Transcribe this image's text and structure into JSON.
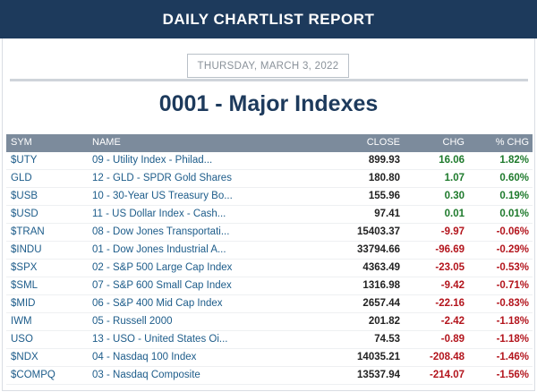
{
  "header": {
    "title": "DAILY CHARTLIST REPORT"
  },
  "report": {
    "date": "THURSDAY, MARCH 3, 2022",
    "list_title": "0001 - Major Indexes"
  },
  "table": {
    "columns": {
      "sym": "SYM",
      "name": "NAME",
      "close": "CLOSE",
      "chg": "CHG",
      "pct": "% CHG"
    },
    "rows": [
      {
        "sym": "$UTY",
        "name": "09 - Utility Index - Philad...",
        "close": "899.93",
        "chg": "16.06",
        "pct": "1.82%",
        "dir": "pos"
      },
      {
        "sym": "GLD",
        "name": "12 - GLD - SPDR Gold Shares",
        "close": "180.80",
        "chg": "1.07",
        "pct": "0.60%",
        "dir": "pos"
      },
      {
        "sym": "$USB",
        "name": "10 - 30-Year US Treasury Bo...",
        "close": "155.96",
        "chg": "0.30",
        "pct": "0.19%",
        "dir": "pos"
      },
      {
        "sym": "$USD",
        "name": "11 - US Dollar Index - Cash...",
        "close": "97.41",
        "chg": "0.01",
        "pct": "0.01%",
        "dir": "pos"
      },
      {
        "sym": "$TRAN",
        "name": "08 - Dow Jones Transportati...",
        "close": "15403.37",
        "chg": "-9.97",
        "pct": "-0.06%",
        "dir": "neg"
      },
      {
        "sym": "$INDU",
        "name": "01 - Dow Jones Industrial A...",
        "close": "33794.66",
        "chg": "-96.69",
        "pct": "-0.29%",
        "dir": "neg"
      },
      {
        "sym": "$SPX",
        "name": "02 - S&P 500 Large Cap Index",
        "close": "4363.49",
        "chg": "-23.05",
        "pct": "-0.53%",
        "dir": "neg"
      },
      {
        "sym": "$SML",
        "name": "07 - S&P 600 Small Cap Index",
        "close": "1316.98",
        "chg": "-9.42",
        "pct": "-0.71%",
        "dir": "neg"
      },
      {
        "sym": "$MID",
        "name": "06 - S&P 400 Mid Cap Index",
        "close": "2657.44",
        "chg": "-22.16",
        "pct": "-0.83%",
        "dir": "neg"
      },
      {
        "sym": "IWM",
        "name": "05 - Russell 2000",
        "close": "201.82",
        "chg": "-2.42",
        "pct": "-1.18%",
        "dir": "neg"
      },
      {
        "sym": "USO",
        "name": "13 - USO - United States Oi...",
        "close": "74.53",
        "chg": "-0.89",
        "pct": "-1.18%",
        "dir": "neg"
      },
      {
        "sym": "$NDX",
        "name": "04 - Nasdaq 100 Index",
        "close": "14035.21",
        "chg": "-208.48",
        "pct": "-1.46%",
        "dir": "neg"
      },
      {
        "sym": "$COMPQ",
        "name": "03 - Nasdaq Composite",
        "close": "13537.94",
        "chg": "-214.07",
        "pct": "-1.56%",
        "dir": "neg"
      }
    ]
  },
  "colors": {
    "header_bg": "#1d3a5c",
    "table_header_bg": "#7c8b9c",
    "positive": "#1e7a2c",
    "negative": "#b3141c",
    "link": "#1d5c8a"
  }
}
